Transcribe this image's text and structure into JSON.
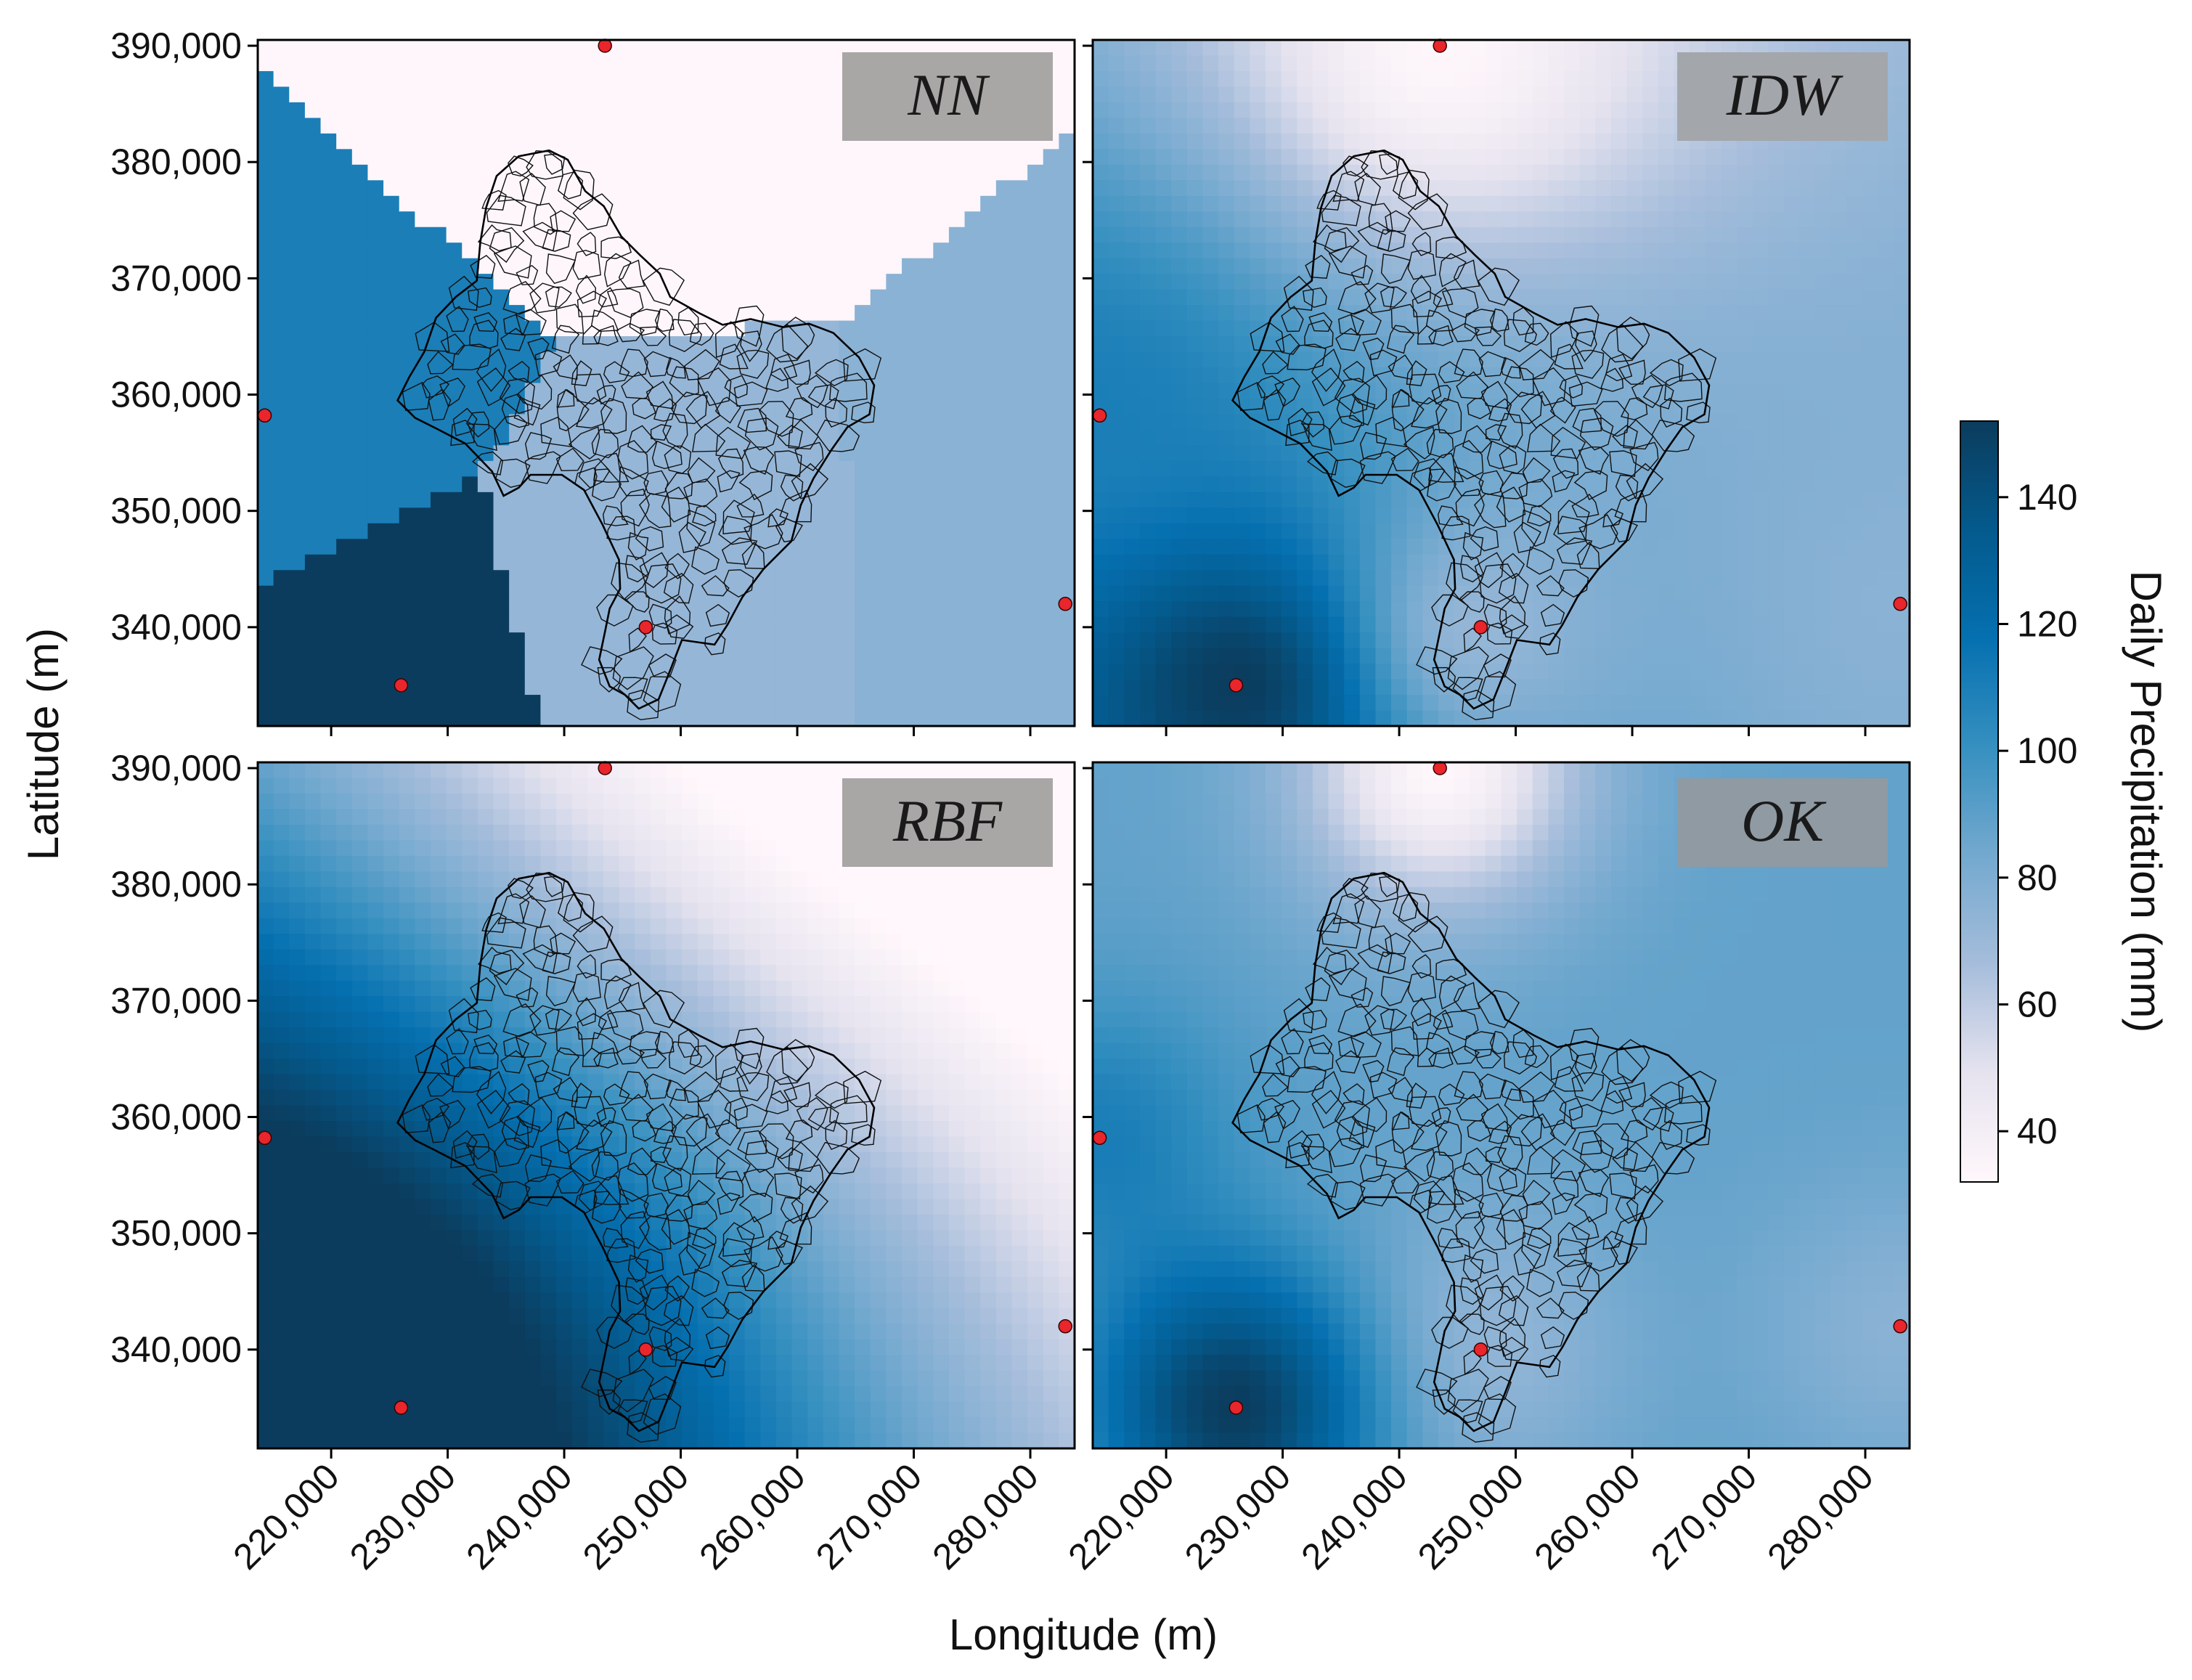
{
  "figure": {
    "xlabel": "Longitude (m)",
    "ylabel": "Latitude (m)",
    "colorbar_label": "Daily Precipitation (mm)"
  },
  "colorbar": {
    "range": [
      32,
      152
    ],
    "ticks": [
      40,
      60,
      80,
      100,
      120,
      140
    ],
    "stops": [
      "#fff7fb",
      "#e6e3ef",
      "#a6bddb",
      "#74a9cf",
      "#3690c0",
      "#0570b0",
      "#045a8d",
      "#0b3c5d"
    ]
  },
  "axes": {
    "x_range": [
      213700,
      283800
    ],
    "y_range": [
      331500,
      390500
    ],
    "x_ticks": [
      220000,
      230000,
      240000,
      250000,
      260000,
      270000,
      280000
    ],
    "x_tick_labels": [
      "220,000",
      "230,000",
      "240,000",
      "250,000",
      "260,000",
      "270,000",
      "280,000"
    ],
    "y_ticks": [
      340000,
      350000,
      360000,
      370000,
      380000,
      390000
    ],
    "y_tick_labels": [
      "340,000",
      "350,000",
      "360,000",
      "370,000",
      "380,000",
      "390,000"
    ]
  },
  "chart_data": {
    "type": "heatmap",
    "panels": [
      "NN",
      "IDW",
      "RBF",
      "OK"
    ],
    "stations": [
      {
        "x": 243500,
        "y": 390000,
        "value": 33
      },
      {
        "x": 214300,
        "y": 358200,
        "value": 110
      },
      {
        "x": 226000,
        "y": 335000,
        "value": 152
      },
      {
        "x": 247000,
        "y": 340000,
        "value": 72
      },
      {
        "x": 283000,
        "y": 342000,
        "value": 76
      }
    ],
    "station_color": "#e8262b",
    "watershed_outline_color": "#000000"
  },
  "panels": [
    {
      "title": "NN"
    },
    {
      "title": "IDW"
    },
    {
      "title": "RBF"
    },
    {
      "title": "OK"
    }
  ]
}
